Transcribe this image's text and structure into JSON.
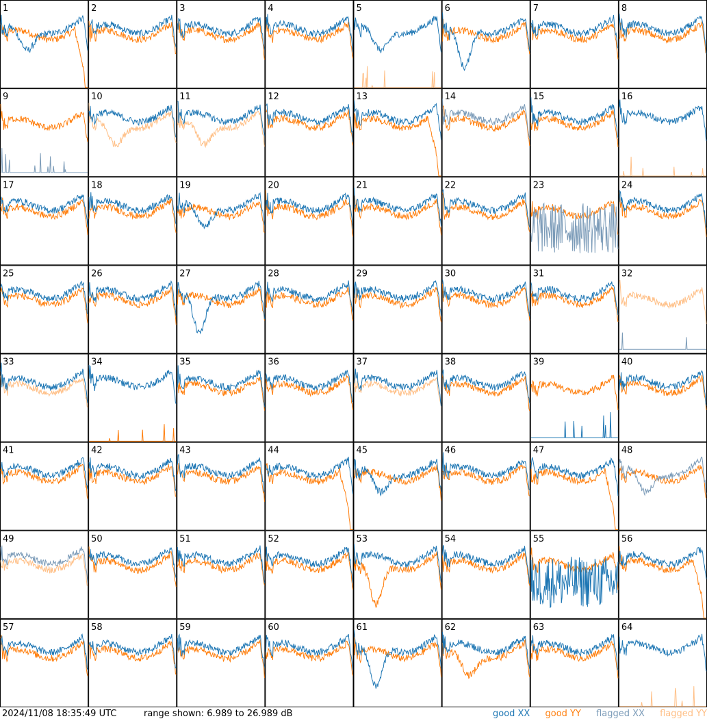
{
  "footer": {
    "timestamp": "2024/11/08 18:35:49 UTC",
    "range": "range shown: 6.989 to 26.989 dB"
  },
  "legend": {
    "good_xx": "good XX",
    "good_yy": "good YY",
    "flagged_xx": "flagged XX",
    "flagged_yy": "flagged YY"
  },
  "colors": {
    "good_xx": "#1f77b4",
    "good_yy": "#ff7f0e",
    "flagged_xx": "#7b9bb8",
    "flagged_yy": "#ffbf86"
  },
  "chart_data": {
    "type": "line",
    "grid": "8x8 small multiples",
    "ylim": [
      6.989,
      26.989
    ],
    "yunit": "dB",
    "tiles": [
      {
        "label": "1",
        "xx": "good",
        "yy": "good",
        "xx_shape": "dip",
        "yy_shape": "drop_end"
      },
      {
        "label": "2",
        "xx": "good",
        "yy": "good"
      },
      {
        "label": "3",
        "xx": "good",
        "yy": "good"
      },
      {
        "label": "4",
        "xx": "good",
        "yy": "good"
      },
      {
        "label": "5",
        "xx": "good",
        "yy": "flagged",
        "xx_shape": "dip",
        "yy_shape": "low"
      },
      {
        "label": "6",
        "xx": "good",
        "yy": "good",
        "xx_shape": "dip_deep"
      },
      {
        "label": "7",
        "xx": "good",
        "yy": "good"
      },
      {
        "label": "8",
        "xx": "good",
        "yy": "good"
      },
      {
        "label": "9",
        "xx": "flagged",
        "yy": "good",
        "xx_shape": "low"
      },
      {
        "label": "10",
        "xx": "good",
        "yy": "flagged",
        "yy_shape": "dip"
      },
      {
        "label": "11",
        "xx": "good",
        "yy": "flagged",
        "yy_shape": "dip"
      },
      {
        "label": "12",
        "xx": "good",
        "yy": "good"
      },
      {
        "label": "13",
        "xx": "good",
        "yy": "good",
        "yy_shape": "drop_end"
      },
      {
        "label": "14",
        "xx": "flagged",
        "yy": "good"
      },
      {
        "label": "15",
        "xx": "good",
        "yy": "good"
      },
      {
        "label": "16",
        "xx": "good",
        "yy": "flagged",
        "yy_shape": "low"
      },
      {
        "label": "17",
        "xx": "good",
        "yy": "good"
      },
      {
        "label": "18",
        "xx": "good",
        "yy": "good"
      },
      {
        "label": "19",
        "xx": "good",
        "yy": "good",
        "xx_shape": "dip"
      },
      {
        "label": "20",
        "xx": "good",
        "yy": "good"
      },
      {
        "label": "21",
        "xx": "good",
        "yy": "good"
      },
      {
        "label": "22",
        "xx": "good",
        "yy": "good"
      },
      {
        "label": "23",
        "xx": "flagged",
        "yy": "good",
        "xx_shape": "noise"
      },
      {
        "label": "24",
        "xx": "good",
        "yy": "good"
      },
      {
        "label": "25",
        "xx": "good",
        "yy": "good"
      },
      {
        "label": "26",
        "xx": "good",
        "yy": "good"
      },
      {
        "label": "27",
        "xx": "good",
        "yy": "good",
        "xx_shape": "dip_deep"
      },
      {
        "label": "28",
        "xx": "good",
        "yy": "good"
      },
      {
        "label": "29",
        "xx": "good",
        "yy": "good"
      },
      {
        "label": "30",
        "xx": "good",
        "yy": "good"
      },
      {
        "label": "31",
        "xx": "good",
        "yy": "good"
      },
      {
        "label": "32",
        "xx": "flagged",
        "yy": "flagged",
        "xx_shape": "low"
      },
      {
        "label": "33",
        "xx": "good",
        "yy": "flagged"
      },
      {
        "label": "34",
        "xx": "good",
        "yy": "good",
        "yy_shape": "low"
      },
      {
        "label": "35",
        "xx": "good",
        "yy": "good"
      },
      {
        "label": "36",
        "xx": "good",
        "yy": "good"
      },
      {
        "label": "37",
        "xx": "good",
        "yy": "flagged"
      },
      {
        "label": "38",
        "xx": "good",
        "yy": "good"
      },
      {
        "label": "39",
        "xx": "good",
        "yy": "good",
        "xx_shape": "low"
      },
      {
        "label": "40",
        "xx": "good",
        "yy": "good"
      },
      {
        "label": "41",
        "xx": "good",
        "yy": "good"
      },
      {
        "label": "42",
        "xx": "good",
        "yy": "good"
      },
      {
        "label": "43",
        "xx": "good",
        "yy": "good"
      },
      {
        "label": "44",
        "xx": "good",
        "yy": "good",
        "yy_shape": "drop_end"
      },
      {
        "label": "45",
        "xx": "good",
        "yy": "good",
        "xx_shape": "dip"
      },
      {
        "label": "46",
        "xx": "good",
        "yy": "good"
      },
      {
        "label": "47",
        "xx": "good",
        "yy": "good",
        "yy_shape": "drop_end"
      },
      {
        "label": "48",
        "xx": "flagged",
        "yy": "good",
        "xx_shape": "dip"
      },
      {
        "label": "49",
        "xx": "flagged",
        "yy": "flagged"
      },
      {
        "label": "50",
        "xx": "good",
        "yy": "good"
      },
      {
        "label": "51",
        "xx": "good",
        "yy": "good"
      },
      {
        "label": "52",
        "xx": "good",
        "yy": "good"
      },
      {
        "label": "53",
        "xx": "good",
        "yy": "good",
        "yy_shape": "dip_deep"
      },
      {
        "label": "54",
        "xx": "good",
        "yy": "good"
      },
      {
        "label": "55",
        "xx": "good",
        "yy": "good",
        "xx_shape": "noise"
      },
      {
        "label": "56",
        "xx": "good",
        "yy": "good",
        "yy_shape": "drop_end"
      },
      {
        "label": "57",
        "xx": "good",
        "yy": "good"
      },
      {
        "label": "58",
        "xx": "good",
        "yy": "good"
      },
      {
        "label": "59",
        "xx": "good",
        "yy": "good"
      },
      {
        "label": "60",
        "xx": "good",
        "yy": "good"
      },
      {
        "label": "61",
        "xx": "good",
        "yy": "good",
        "xx_shape": "dip_deep"
      },
      {
        "label": "62",
        "xx": "good",
        "yy": "good",
        "yy_shape": "dip"
      },
      {
        "label": "63",
        "xx": "good",
        "yy": "good"
      },
      {
        "label": "64",
        "xx": "good",
        "yy": "flagged",
        "yy_shape": "low"
      }
    ]
  }
}
